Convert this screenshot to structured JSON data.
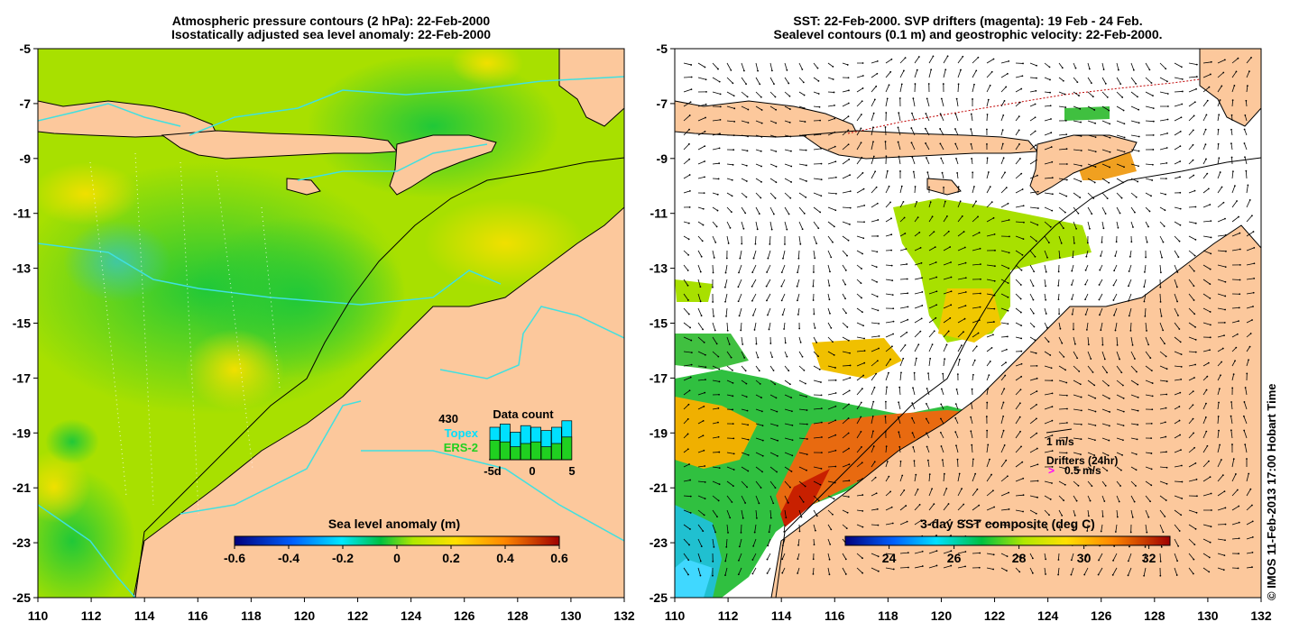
{
  "left_panel": {
    "title_line1": "Atmospheric pressure contours (2 hPa): 22-Feb-2000",
    "title_line2": "Isostatically adjusted sea level anomaly: 22-Feb-2000",
    "colorbar_title": "Sea level anomaly (m)",
    "colorbar_ticks": [
      "-0.6",
      "-0.4",
      "-0.2",
      "0",
      "0.2",
      "0.4",
      "0.6"
    ],
    "data_count": {
      "title": "Data count",
      "max_label": "430",
      "series1": "Topex",
      "series2": "ERS-2",
      "series1_color": "#00e0ff",
      "series2_color": "#20d020",
      "axis_labels": [
        "-5d",
        "0",
        "5"
      ]
    }
  },
  "right_panel": {
    "title_line1": "SST: 22-Feb-2000. SVP drifters (magenta): 19 Feb - 24 Feb.",
    "title_line2": "Sealevel contours (0.1 m) and geostrophic velocity: 22-Feb-2000.",
    "colorbar_title": "3-day SST composite (deg C)",
    "colorbar_ticks": [
      "24",
      "26",
      "28",
      "30",
      "32"
    ],
    "velocity_key": "1 m/s",
    "drifter_key_title": "Drifters (24hr)",
    "drifter_key_value": "0.5 m/s",
    "drifter_color": "#ff00ff"
  },
  "axes": {
    "lat_ticks": [
      "-5",
      "-7",
      "-9",
      "-11",
      "-13",
      "-15",
      "-17",
      "-19",
      "-21",
      "-23",
      "-25"
    ],
    "lon_ticks": [
      "110",
      "112",
      "114",
      "116",
      "118",
      "120",
      "122",
      "124",
      "126",
      "128",
      "130",
      "132"
    ]
  },
  "colors": {
    "land": "#fcc89c",
    "sla_base": "#a8e000"
  },
  "credit": "© IMOS 11-Feb-2013 17:00 Hobart Time"
}
